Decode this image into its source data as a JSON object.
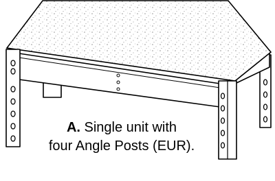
{
  "caption": {
    "label": "A.",
    "lines": [
      "Single unit with",
      "four Angle Posts (EUR)."
    ]
  }
}
